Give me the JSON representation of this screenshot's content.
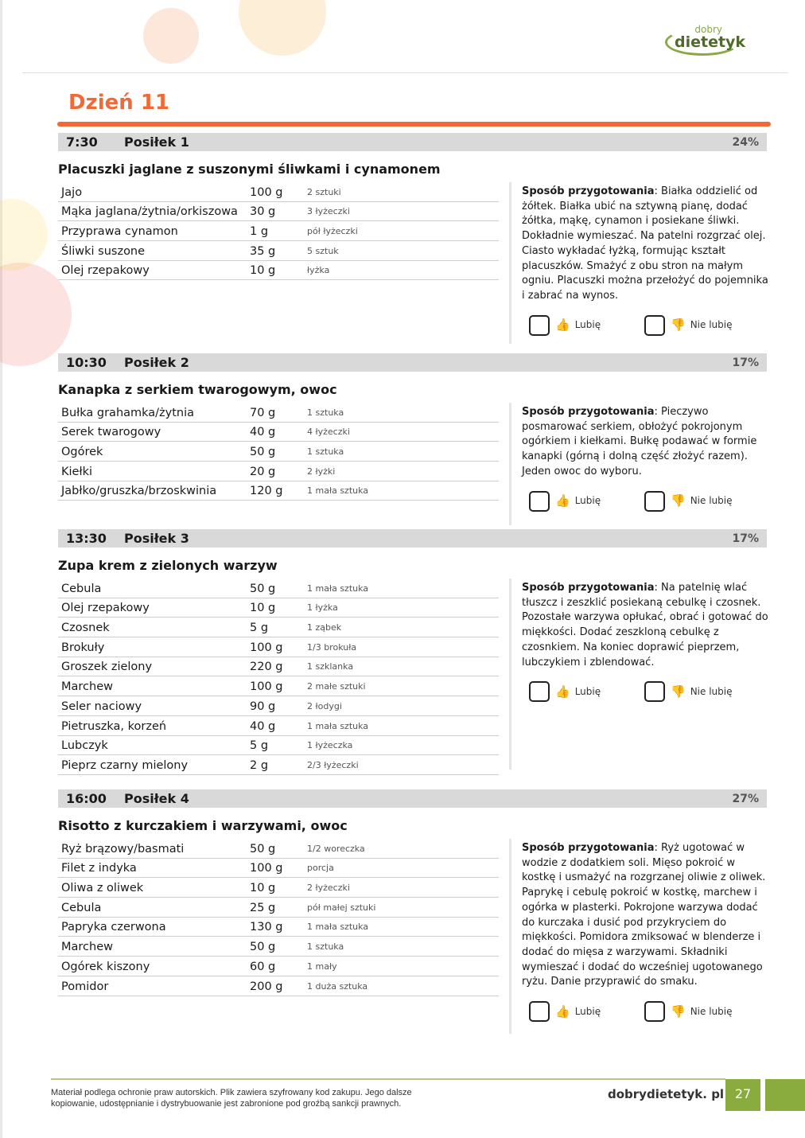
{
  "logo": {
    "small": "dobry",
    "big": "dietetyk"
  },
  "day_title": "Dzień 11",
  "vote_like": "Lubię",
  "vote_dislike": "Nie lubię",
  "prep_label": "Sposób przygotowania",
  "meals": [
    {
      "time": "7:30",
      "name": "Posiłek 1",
      "percent": "24%",
      "title": "Placuszki jaglane z suszonymi śliwkami i cynamonem",
      "ingredients": [
        [
          "Jajo",
          "100 g",
          "2 sztuki"
        ],
        [
          "Mąka jaglana/żytnia/orkiszowa",
          "30 g",
          "3 łyżeczki"
        ],
        [
          "Przyprawa cynamon",
          "1 g",
          "pół łyżeczki"
        ],
        [
          "Śliwki suszone",
          "35 g",
          "5 sztuk"
        ],
        [
          "Olej rzepakowy",
          "10 g",
          "łyżka"
        ]
      ],
      "prep": "Białka oddzielić od żółtek. Białka ubić na sztywną pianę, dodać żółtka, mąkę, cynamon i posiekane śliwki. Dokładnie wymieszać. Na patelni rozgrzać olej. Ciasto wykładać łyżką, formując kształt placuszków. Smażyć z obu stron na małym ogniu. Placuszki można przełożyć do pojemnika i zabrać na wynos."
    },
    {
      "time": "10:30",
      "name": "Posiłek 2",
      "percent": "17%",
      "title": "Kanapka z serkiem twarogowym, owoc",
      "ingredients": [
        [
          "Bułka grahamka/żytnia",
          "70 g",
          "1 sztuka"
        ],
        [
          "Serek twarogowy",
          "40 g",
          "4 łyżeczki"
        ],
        [
          "Ogórek",
          "50 g",
          "1 sztuka"
        ],
        [
          "Kiełki",
          "20 g",
          "2 łyżki"
        ],
        [
          "Jabłko/gruszka/brzoskwinia",
          "120 g",
          "1 mała sztuka"
        ]
      ],
      "prep": "Pieczywo posmarować serkiem, obłożyć pokrojonym ogórkiem i kiełkami. Bułkę podawać w formie kanapki (górną i dolną część złożyć razem). Jeden owoc do wyboru."
    },
    {
      "time": "13:30",
      "name": "Posiłek 3",
      "percent": "17%",
      "title": "Zupa krem z zielonych warzyw",
      "ingredients": [
        [
          "Cebula",
          "50 g",
          "1 mała sztuka"
        ],
        [
          "Olej rzepakowy",
          "10 g",
          "1 łyżka"
        ],
        [
          "Czosnek",
          "5 g",
          "1 ząbek"
        ],
        [
          "Brokuły",
          "100 g",
          "1/3 brokuła"
        ],
        [
          "Groszek zielony",
          "220 g",
          "1 szklanka"
        ],
        [
          "Marchew",
          "100 g",
          "2 małe sztuki"
        ],
        [
          "Seler naciowy",
          "90 g",
          "2 łodygi"
        ],
        [
          "Pietruszka, korzeń",
          "40 g",
          "1 mała sztuka"
        ],
        [
          "Lubczyk",
          "5 g",
          "1 łyżeczka"
        ],
        [
          "Pieprz czarny mielony",
          "2 g",
          "2/3 łyżeczki"
        ]
      ],
      "prep": "Na patelnię wlać tłuszcz i zeszklić posiekaną cebulkę i czosnek. Pozostałe warzywa opłukać, obrać i gotować do miękkości. Dodać zeszkloną cebulkę z czosnkiem. Na koniec doprawić pieprzem, lubczykiem i zblendować."
    },
    {
      "time": "16:00",
      "name": "Posiłek 4",
      "percent": "27%",
      "title": "Risotto z kurczakiem i warzywami, owoc",
      "ingredients": [
        [
          "Ryż brązowy/basmati",
          "50 g",
          "1/2 woreczka"
        ],
        [
          "Filet z indyka",
          "100 g",
          "porcja"
        ],
        [
          "Oliwa z oliwek",
          "10 g",
          "2 łyżeczki"
        ],
        [
          "Cebula",
          "25 g",
          "pół małej sztuki"
        ],
        [
          "Papryka czerwona",
          "130 g",
          "1 mała sztuka"
        ],
        [
          "Marchew",
          "50 g",
          "1 sztuka"
        ],
        [
          "Ogórek kiszony",
          "60 g",
          "1 mały"
        ],
        [
          "Pomidor",
          "200 g",
          "1 duża sztuka"
        ]
      ],
      "prep": "Ryż ugotować w wodzie z dodatkiem soli. Mięso pokroić w kostkę i usmażyć na rozgrzanej oliwie z oliwek. Paprykę i cebulę pokroić w kostkę, marchew i ogórka w plasterki. Pokrojone warzywa dodać do kurczaka i dusić pod przykryciem do miękkości. Pomidora zmiksować w blenderze i dodać do mięsa z warzywami. Składniki wymieszać i dodać do wcześniej ugotowanego ryżu. Danie przyprawić do smaku."
    }
  ],
  "footer": {
    "note_line1": "Materiał podlega ochronie praw autorskich. Plik zawiera szyfrowany kod zakupu. Jego dalsze",
    "note_line2": "kopiowanie, udostępnianie i dystrybuowanie jest zabronione pod groźbą sankcji prawnych.",
    "site": "dobrydietetyk. pl",
    "page": "27"
  },
  "colors": {
    "accent": "#ef6a36",
    "brand_green": "#8aac3e",
    "header_gray": "#d9d9d9"
  }
}
